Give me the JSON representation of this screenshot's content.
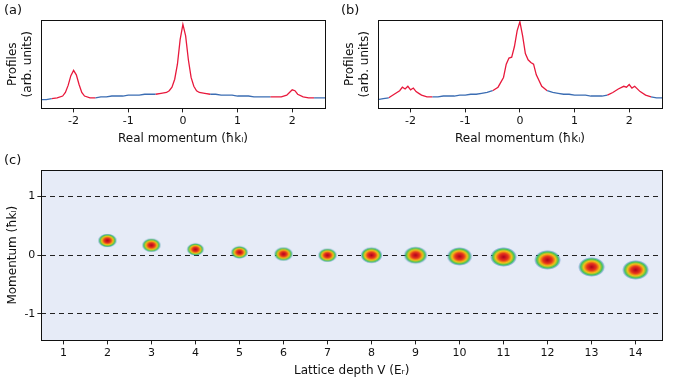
{
  "chart_data": [
    {
      "panel": "(a)",
      "type": "line",
      "xlabel": "Real momentum (ħkₗ)",
      "ylabel": [
        "Profiles",
        "(arb. units)"
      ],
      "x": [
        -2.6,
        -2.5,
        -2.4,
        -2.3,
        -2.2,
        -2.15,
        -2.1,
        -2.05,
        -2.0,
        -1.95,
        -1.9,
        -1.85,
        -1.8,
        -1.7,
        -1.6,
        -1.5,
        -1.4,
        -1.3,
        -1.2,
        -1.1,
        -1.0,
        -0.9,
        -0.8,
        -0.7,
        -0.6,
        -0.5,
        -0.4,
        -0.3,
        -0.25,
        -0.2,
        -0.15,
        -0.1,
        -0.05,
        0,
        0.05,
        0.1,
        0.15,
        0.2,
        0.25,
        0.3,
        0.4,
        0.5,
        0.6,
        0.7,
        0.8,
        0.9,
        1.0,
        1.1,
        1.2,
        1.3,
        1.4,
        1.5,
        1.6,
        1.7,
        1.8,
        1.9,
        1.95,
        2.0,
        2.05,
        2.1,
        2.2,
        2.3,
        2.4,
        2.5,
        2.6
      ],
      "series": [
        {
          "color": "#3b6db3",
          "values": [
            0.1,
            0.1,
            0.11,
            null,
            null,
            null,
            null,
            null,
            null,
            null,
            null,
            null,
            null,
            null,
            0.12,
            0.13,
            0.13,
            0.14,
            0.14,
            0.14,
            0.15,
            0.15,
            0.15,
            0.16,
            0.16,
            0.16,
            null,
            null,
            null,
            null,
            null,
            null,
            null,
            null,
            null,
            null,
            null,
            null,
            null,
            null,
            null,
            0.16,
            0.16,
            0.15,
            0.15,
            0.15,
            0.14,
            0.14,
            0.14,
            0.13,
            0.13,
            0.13,
            0.13,
            null,
            null,
            null,
            null,
            null,
            null,
            null,
            null,
            null,
            0.12,
            0.12,
            0.12
          ]
        },
        {
          "color": "#e8193c",
          "values": [
            null,
            null,
            0.11,
            0.12,
            0.14,
            0.18,
            0.26,
            0.37,
            0.43,
            0.38,
            0.27,
            0.18,
            0.14,
            0.12,
            0.12,
            null,
            null,
            null,
            null,
            null,
            null,
            null,
            null,
            null,
            null,
            0.16,
            0.17,
            0.18,
            0.2,
            0.24,
            0.33,
            0.5,
            0.78,
            0.95,
            0.82,
            0.55,
            0.35,
            0.25,
            0.2,
            0.18,
            0.17,
            0.16,
            null,
            null,
            null,
            null,
            null,
            null,
            null,
            null,
            null,
            null,
            0.13,
            0.13,
            0.13,
            0.15,
            0.18,
            0.21,
            0.2,
            0.16,
            0.13,
            0.12,
            0.12,
            null,
            null
          ]
        }
      ],
      "xlim": [
        -2.6,
        2.6
      ],
      "xticks": [
        -2,
        -1,
        0,
        1,
        2
      ],
      "ylim": [
        0,
        1
      ],
      "tick_labels": "x",
      "grid": false
    },
    {
      "panel": "(b)",
      "type": "line",
      "xlabel": "Real momentum (ħkₗ)",
      "ylabel": [
        "Profiles",
        "(arb. units)"
      ],
      "x": [
        -2.6,
        -2.5,
        -2.4,
        -2.3,
        -2.2,
        -2.15,
        -2.1,
        -2.05,
        -2.0,
        -1.95,
        -1.9,
        -1.85,
        -1.8,
        -1.7,
        -1.6,
        -1.5,
        -1.4,
        -1.3,
        -1.2,
        -1.1,
        -1.0,
        -0.9,
        -0.8,
        -0.7,
        -0.6,
        -0.5,
        -0.4,
        -0.3,
        -0.25,
        -0.2,
        -0.15,
        -0.1,
        -0.05,
        0,
        0.05,
        0.1,
        0.15,
        0.2,
        0.25,
        0.3,
        0.4,
        0.5,
        0.6,
        0.7,
        0.8,
        0.9,
        1.0,
        1.1,
        1.2,
        1.3,
        1.4,
        1.5,
        1.6,
        1.7,
        1.8,
        1.9,
        1.95,
        2.0,
        2.05,
        2.1,
        2.2,
        2.3,
        2.4,
        2.5,
        2.6
      ],
      "series": [
        {
          "color": "#3b6db3",
          "values": [
            0.1,
            0.11,
            0.12,
            null,
            null,
            null,
            null,
            null,
            null,
            null,
            null,
            null,
            null,
            null,
            0.13,
            0.13,
            0.14,
            0.14,
            0.14,
            0.15,
            0.15,
            0.16,
            0.16,
            0.17,
            0.18,
            0.2,
            null,
            null,
            null,
            null,
            null,
            null,
            null,
            null,
            null,
            null,
            null,
            null,
            null,
            null,
            null,
            0.2,
            0.18,
            0.17,
            0.16,
            0.16,
            0.15,
            0.15,
            0.15,
            0.14,
            0.14,
            0.14,
            0.15,
            null,
            null,
            null,
            null,
            null,
            null,
            null,
            null,
            null,
            0.13,
            0.12,
            0.12
          ]
        },
        {
          "color": "#e8193c",
          "values": [
            null,
            null,
            0.12,
            0.16,
            0.2,
            0.24,
            0.22,
            0.25,
            0.21,
            0.23,
            0.19,
            0.17,
            0.15,
            0.13,
            0.13,
            null,
            null,
            null,
            null,
            null,
            null,
            null,
            null,
            null,
            null,
            0.2,
            0.24,
            0.35,
            0.5,
            0.57,
            0.58,
            0.7,
            0.88,
            0.98,
            0.82,
            0.62,
            0.55,
            0.52,
            0.5,
            0.38,
            0.25,
            0.2,
            null,
            null,
            null,
            null,
            null,
            null,
            null,
            null,
            null,
            null,
            0.15,
            0.18,
            0.22,
            0.25,
            0.24,
            0.27,
            0.23,
            0.25,
            0.19,
            0.15,
            0.13,
            null,
            null
          ]
        }
      ],
      "xlim": [
        -2.6,
        2.6
      ],
      "xticks": [
        -2,
        -1,
        0,
        1,
        2
      ],
      "ylim": [
        0,
        1
      ],
      "tick_labels": "x",
      "grid": false
    },
    {
      "panel": "(c)",
      "type": "scatter",
      "xlabel": "Lattice depth V (Eᵣ)",
      "ylabel": "Momentum (ħkₗ)",
      "x": [
        2,
        3,
        4,
        5,
        6,
        7,
        8,
        9,
        10,
        11,
        12,
        13,
        14
      ],
      "series": [
        {
          "color": "#b0001e",
          "marker": "ellipse",
          "values": [
            0.25,
            0.17,
            0.1,
            0.05,
            0.02,
            0,
            0,
            0,
            -0.02,
            -0.03,
            -0.08,
            -0.2,
            -0.25
          ],
          "sizes": [
            0.12,
            0.12,
            0.11,
            0.11,
            0.12,
            0.12,
            0.14,
            0.15,
            0.16,
            0.17,
            0.17,
            0.17,
            0.17
          ]
        }
      ],
      "xlim": [
        0.5,
        14.6
      ],
      "xticks": [
        1,
        2,
        3,
        4,
        5,
        6,
        7,
        8,
        9,
        10,
        11,
        12,
        13,
        14
      ],
      "ylim": [
        -1.45,
        1.45
      ],
      "yticks": [
        -1,
        0,
        1
      ],
      "grid": "y"
    }
  ]
}
